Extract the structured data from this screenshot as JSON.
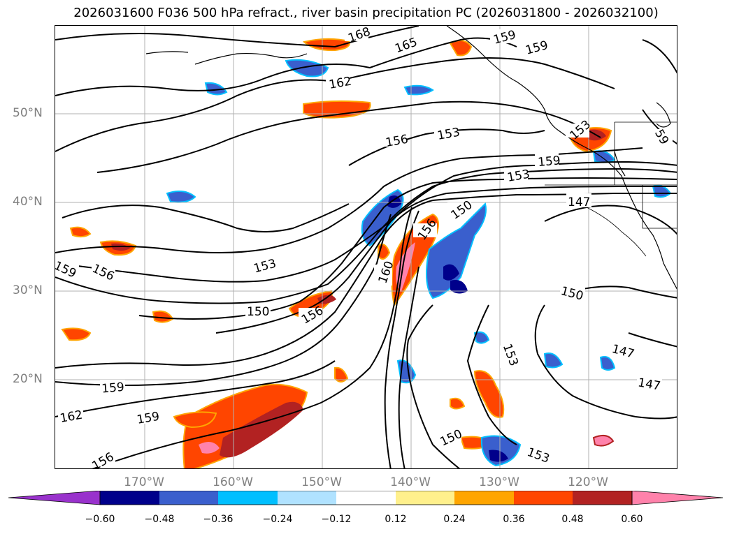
{
  "title": "2026031600 F036 500 hPa refract., river basin precipitation PC (2026031800 - 2026032100)",
  "map": {
    "lat_labels": [
      "50°N",
      "40°N",
      "30°N",
      "20°N"
    ],
    "lon_labels": [
      "170°W",
      "160°W",
      "150°W",
      "140°W",
      "130°W",
      "120°W"
    ],
    "contour_labels": [
      "168",
      "165",
      "159",
      "159",
      "162",
      "153",
      "156",
      "153",
      "159",
      "153",
      "147",
      "150",
      "156",
      "153",
      "159",
      "156",
      "150",
      "156",
      "150",
      "160",
      "153",
      "147",
      "147",
      "159",
      "162",
      "159",
      "150",
      "153",
      "156",
      "59"
    ]
  },
  "colorbar": {
    "ticks": [
      "−0.60",
      "−0.48",
      "−0.36",
      "−0.24",
      "−0.12",
      "0.12",
      "0.24",
      "0.36",
      "0.48",
      "0.60"
    ],
    "colors": [
      "#9932cc",
      "#00008b",
      "#3a5fcd",
      "#00bfff",
      "#b0e2ff",
      "#ffffff",
      "#fff08c",
      "#ffa500",
      "#ff4500",
      "#b22222",
      "#ff82ab"
    ]
  }
}
